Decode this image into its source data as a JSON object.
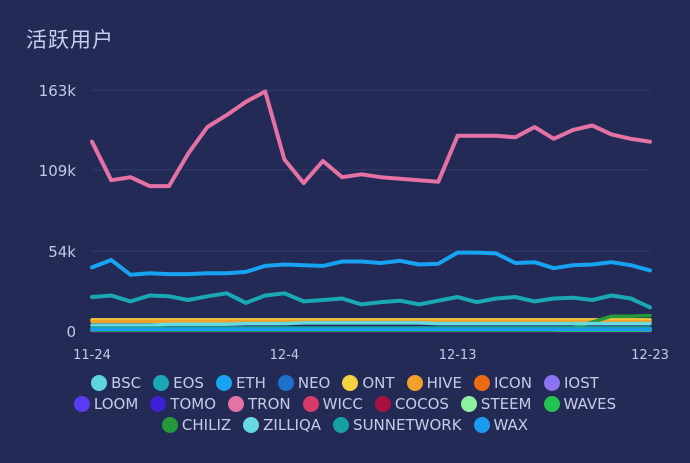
{
  "chart_data": {
    "type": "line",
    "title": "活跃用户",
    "x_tick_labels": [
      "11-24",
      "12-4",
      "12-13",
      "12-23"
    ],
    "y_tick_labels": [
      "0",
      "54k",
      "109k",
      "163k"
    ],
    "y_ticks": [
      0,
      54000,
      109000,
      163000
    ],
    "ylim": [
      0,
      163000
    ],
    "n_points": 30,
    "x_tick_index": [
      0,
      10,
      19,
      29
    ],
    "grid": "horizontal",
    "legend_position": "bottom",
    "series": [
      {
        "name": "BSC",
        "color": "#5dd6dc",
        "values": [
          1500,
          1500,
          1500,
          1500,
          1500,
          1500,
          1500,
          1500,
          1500,
          1500,
          1500,
          1500,
          1500,
          1500,
          1500,
          1500,
          1500,
          1500,
          1500,
          1500,
          1500,
          1500,
          1500,
          1500,
          1500,
          1500,
          1500,
          1500,
          1500,
          1500
        ]
      },
      {
        "name": "EOS",
        "color": "#1aa8b4",
        "values": [
          23000,
          24000,
          20000,
          24000,
          23500,
          21000,
          23500,
          25500,
          19000,
          24000,
          25500,
          20000,
          21000,
          22000,
          18000,
          19500,
          20500,
          18000,
          20500,
          23000,
          19500,
          22000,
          23000,
          20000,
          22000,
          22500,
          21000,
          24000,
          22000,
          16000
        ]
      },
      {
        "name": "ETH",
        "color": "#17a3f2",
        "values": [
          43000,
          48000,
          38000,
          39000,
          38500,
          38500,
          39000,
          39000,
          40000,
          44000,
          45000,
          44500,
          44000,
          47000,
          47000,
          46000,
          47500,
          45000,
          45500,
          53000,
          53000,
          52500,
          46000,
          46500,
          42500,
          44500,
          45000,
          46500,
          44500,
          41000
        ]
      },
      {
        "name": "NEO",
        "color": "#1f6fcc",
        "values": [
          500,
          500,
          500,
          500,
          500,
          500,
          500,
          500,
          500,
          500,
          500,
          500,
          500,
          500,
          500,
          500,
          500,
          500,
          500,
          500,
          500,
          500,
          500,
          500,
          500,
          500,
          500,
          500,
          500,
          500
        ]
      },
      {
        "name": "ONT",
        "color": "#f5d23f",
        "values": [
          7500,
          7500,
          7500,
          7500,
          7500,
          7500,
          7500,
          7500,
          7500,
          7500,
          7500,
          7500,
          7500,
          7500,
          7500,
          7500,
          7500,
          7500,
          7500,
          7500,
          7500,
          7500,
          7500,
          7500,
          7500,
          7500,
          7500,
          7500,
          7500,
          7500
        ]
      },
      {
        "name": "HIVE",
        "color": "#f0a12a",
        "values": [
          6500,
          6500,
          6500,
          6500,
          6500,
          6500,
          6500,
          6500,
          6500,
          6500,
          6500,
          6500,
          6500,
          6500,
          6500,
          6500,
          6500,
          6500,
          6500,
          6500,
          6500,
          6500,
          6500,
          6500,
          6500,
          6500,
          6500,
          6500,
          6500,
          6500
        ]
      },
      {
        "name": "ICON",
        "color": "#ec6a12",
        "values": [
          1000,
          1000,
          1000,
          1000,
          1000,
          1000,
          1000,
          1000,
          1000,
          1000,
          1000,
          1000,
          1000,
          1000,
          1000,
          1000,
          1000,
          1000,
          1000,
          1000,
          1000,
          1000,
          1000,
          1000,
          1000,
          1000,
          1000,
          1000,
          1000,
          1000
        ]
      },
      {
        "name": "IOST",
        "color": "#8a72f0",
        "values": [
          800,
          800,
          800,
          800,
          800,
          800,
          800,
          800,
          800,
          800,
          800,
          800,
          800,
          800,
          800,
          800,
          800,
          800,
          800,
          800,
          800,
          800,
          800,
          800,
          800,
          800,
          800,
          800,
          800,
          800
        ]
      },
      {
        "name": "LOOM",
        "color": "#5a3af2",
        "values": [
          300,
          300,
          300,
          300,
          300,
          300,
          300,
          300,
          300,
          300,
          300,
          300,
          300,
          300,
          300,
          300,
          300,
          300,
          300,
          300,
          300,
          300,
          300,
          300,
          300,
          300,
          300,
          300,
          300,
          300
        ]
      },
      {
        "name": "TOMO",
        "color": "#3d1fd6",
        "values": [
          300,
          300,
          300,
          300,
          300,
          300,
          300,
          300,
          300,
          300,
          300,
          300,
          300,
          300,
          300,
          300,
          300,
          300,
          300,
          300,
          300,
          300,
          300,
          300,
          300,
          300,
          300,
          300,
          300,
          300
        ]
      },
      {
        "name": "TRON",
        "color": "#e472a4",
        "values": [
          128000,
          102000,
          104000,
          98000,
          98000,
          120000,
          138000,
          146000,
          155000,
          162000,
          116000,
          100000,
          115000,
          104000,
          106000,
          104000,
          103000,
          102000,
          101000,
          132000,
          132000,
          132000,
          131000,
          138000,
          130000,
          136000,
          139000,
          133000,
          130000,
          128000
        ]
      },
      {
        "name": "WICC",
        "color": "#d83a6a",
        "values": [
          400,
          400,
          400,
          400,
          400,
          400,
          400,
          400,
          400,
          400,
          400,
          400,
          400,
          400,
          400,
          400,
          400,
          400,
          400,
          400,
          400,
          400,
          400,
          400,
          400,
          400,
          400,
          400,
          400,
          400
        ]
      },
      {
        "name": "COCOS",
        "color": "#a8123e",
        "values": [
          400,
          400,
          400,
          400,
          400,
          400,
          400,
          400,
          400,
          400,
          400,
          400,
          400,
          400,
          400,
          400,
          400,
          400,
          400,
          400,
          400,
          400,
          400,
          400,
          400,
          400,
          400,
          400,
          400,
          400
        ]
      },
      {
        "name": "STEEM",
        "color": "#8ef0a0",
        "values": [
          700,
          700,
          700,
          700,
          700,
          700,
          700,
          700,
          700,
          700,
          700,
          700,
          700,
          700,
          700,
          700,
          700,
          700,
          700,
          700,
          700,
          700,
          700,
          700,
          700,
          700,
          700,
          700,
          700,
          700
        ]
      },
      {
        "name": "WAVES",
        "color": "#22c450",
        "values": [
          600,
          600,
          600,
          600,
          600,
          600,
          600,
          600,
          600,
          600,
          600,
          600,
          600,
          600,
          600,
          600,
          600,
          600,
          600,
          600,
          600,
          600,
          600,
          600,
          600,
          600,
          600,
          600,
          600,
          600
        ]
      },
      {
        "name": "CHILIZ",
        "color": "#249a3a",
        "values": [
          600,
          600,
          600,
          600,
          600,
          600,
          600,
          600,
          600,
          600,
          600,
          600,
          600,
          600,
          600,
          600,
          600,
          600,
          600,
          600,
          600,
          600,
          600,
          600,
          600,
          2000,
          6000,
          10000,
          10000,
          10500
        ]
      },
      {
        "name": "ZILLIQA",
        "color": "#67d9e0",
        "values": [
          4000,
          4000,
          4000,
          4000,
          4500,
          4500,
          4500,
          4500,
          5000,
          5000,
          5000,
          5500,
          5500,
          5500,
          5500,
          5500,
          5500,
          5500,
          5000,
          5000,
          5000,
          5000,
          5000,
          5000,
          5000,
          5000,
          5000,
          5000,
          5000,
          5000
        ]
      },
      {
        "name": "SUNNETWORK",
        "color": "#17a0a0",
        "values": [
          2000,
          2000,
          2000,
          2000,
          2000,
          2000,
          2000,
          2000,
          2000,
          2000,
          2000,
          2000,
          2000,
          2000,
          2000,
          2000,
          2000,
          2000,
          2000,
          2000,
          2000,
          2000,
          2000,
          2000,
          2000,
          2000,
          2000,
          2000,
          2000,
          2000
        ]
      },
      {
        "name": "WAX",
        "color": "#1a9bf0",
        "values": [
          1000,
          1000,
          1000,
          1000,
          1000,
          1000,
          1000,
          1000,
          1000,
          1000,
          1000,
          1000,
          1000,
          1000,
          1000,
          1000,
          1000,
          1000,
          1000,
          1000,
          1000,
          1000,
          1000,
          1000,
          1000,
          1000,
          1000,
          1000,
          1000,
          1000
        ]
      }
    ]
  },
  "legend_rows": [
    [
      "BSC",
      "EOS",
      "ETH",
      "NEO",
      "ONT",
      "HIVE",
      "ICON",
      "IOST"
    ],
    [
      "LOOM",
      "TOMO",
      "TRON",
      "WICC",
      "COCOS",
      "STEEM",
      "WAVES"
    ],
    [
      "CHILIZ",
      "ZILLIQA",
      "SUNNETWORK",
      "WAX"
    ]
  ]
}
